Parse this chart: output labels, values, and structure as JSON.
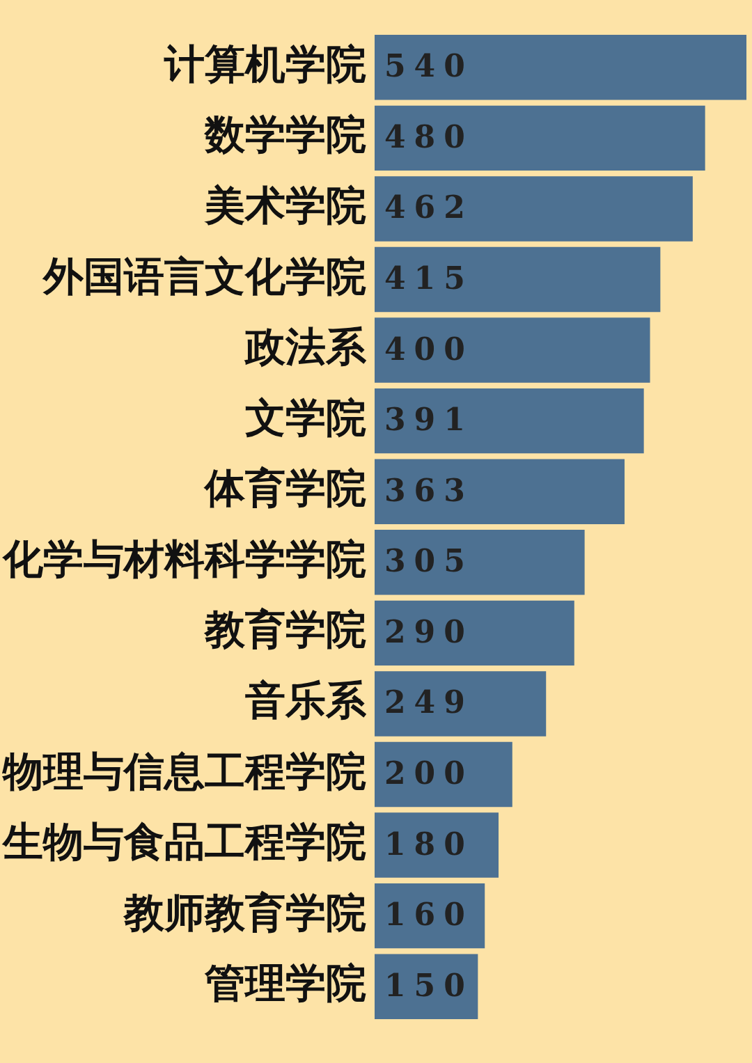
{
  "chart_data": {
    "type": "bar",
    "orientation": "horizontal",
    "categories": [
      "计算机学院",
      "数学学院",
      "美术学院",
      "外国语言文化学院",
      "政法系",
      "文学院",
      "体育学院",
      "化学与材料科学学院",
      "教育学院",
      "音乐系",
      "物理与信息工程学院",
      "生物与食品工程学院",
      "教师教育学院",
      "管理学院"
    ],
    "values": [
      540,
      480,
      462,
      415,
      400,
      391,
      363,
      305,
      290,
      249,
      200,
      180,
      160,
      150
    ],
    "color": "#4d7192",
    "data_labels": true,
    "tick_labels": "y"
  }
}
